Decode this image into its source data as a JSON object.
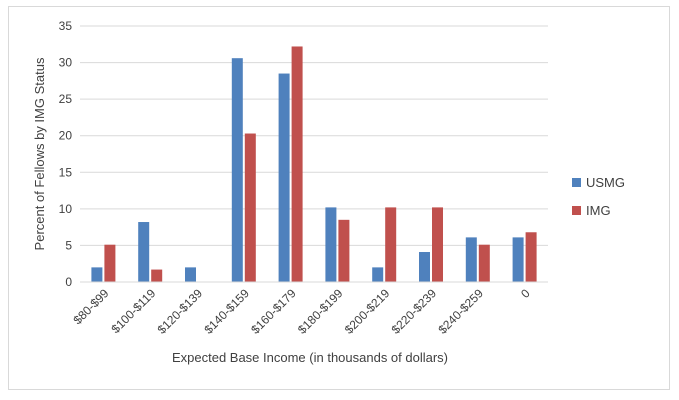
{
  "chart_data": {
    "type": "bar",
    "categories": [
      "$80-$99",
      "$100-$119",
      "$120-$139",
      "$140-$159",
      "$160-$179",
      "$180-$199",
      "$200-$219",
      "$220-$239",
      "$240-$259",
      "0"
    ],
    "series": [
      {
        "name": "USMG",
        "color": "#4f81bd",
        "values": [
          2.0,
          8.2,
          2.0,
          30.6,
          28.5,
          10.2,
          2.0,
          4.1,
          6.1,
          6.1
        ]
      },
      {
        "name": "IMG",
        "color": "#c0504d",
        "values": [
          5.1,
          1.7,
          0,
          20.3,
          32.2,
          8.5,
          10.2,
          10.2,
          5.1,
          6.8
        ]
      }
    ],
    "xlabel": "Expected  Base Income (in thousands  of dollars)",
    "ylabel": "Percent of Fellows by IMG Status",
    "ylim": [
      0,
      35
    ],
    "yticks": [
      0,
      5,
      10,
      15,
      20,
      25,
      30,
      35
    ],
    "grid": true,
    "legend": "right"
  }
}
